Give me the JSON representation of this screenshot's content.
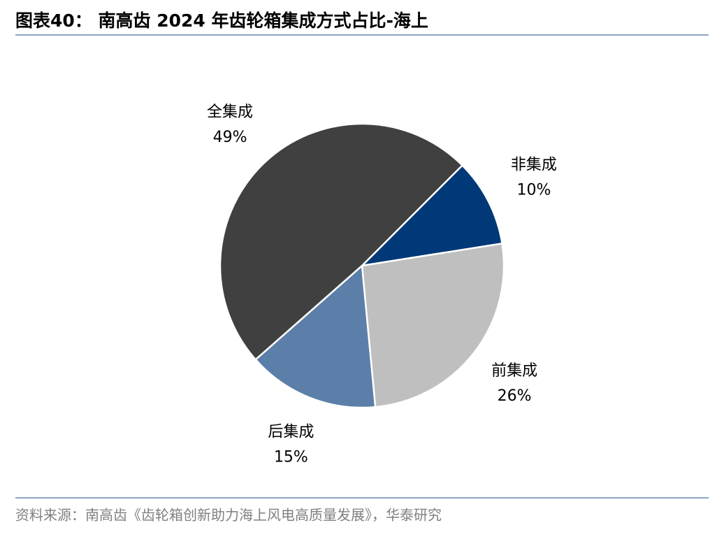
{
  "chart_data": {
    "type": "pie",
    "title": "图表40：  南高齿 2024 年齿轮箱集成方式占比-海上",
    "categories": [
      "非集成",
      "前集成",
      "后集成",
      "全集成"
    ],
    "values": [
      10,
      26,
      15,
      49
    ],
    "value_labels": [
      "10%",
      "26%",
      "15%",
      "49%"
    ],
    "colors": [
      "#003878",
      "#bfbfbf",
      "#5b7fa8",
      "#404040"
    ],
    "source": "资料来源：南高齿《齿轮箱创新助力海上风电高质量发展》，华泰研究"
  }
}
